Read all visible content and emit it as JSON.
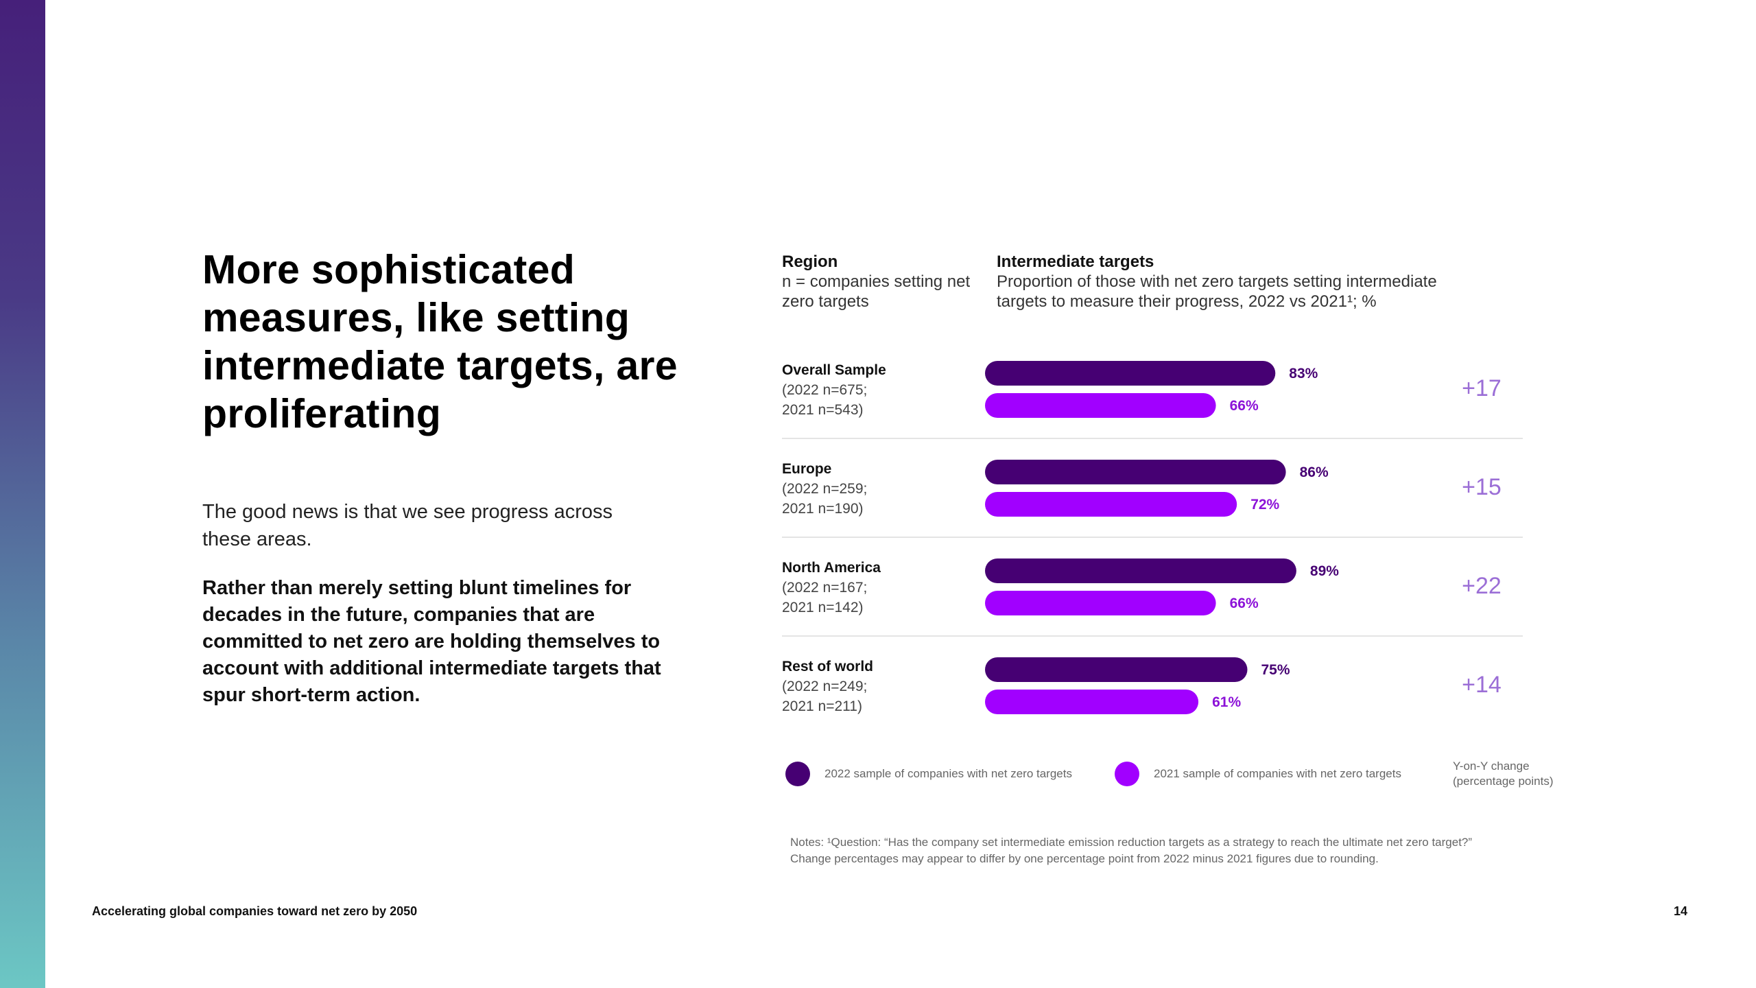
{
  "page": {
    "title": "More sophisticated measures, like setting intermediate targets, are proliferating",
    "intro": "The good news is that we see progress across these areas.",
    "body": "Rather than merely setting blunt timelines for decades in the future, companies that are committed to net zero are holding themselves to account with additional intermediate targets that spur short-term action.",
    "footer_title": "Accelerating global companies toward net zero by 2050",
    "page_number": "14"
  },
  "headers": {
    "region_title": "Region",
    "region_sub": "n = companies setting net zero targets",
    "targets_title": "Intermediate targets",
    "targets_sub": "Proportion of those with net zero targets setting intermediate targets to measure their progress, 2022 vs 2021¹; %"
  },
  "rows": [
    {
      "name": "Overall Sample",
      "n2022": "(2022 n=675;",
      "n2021": "2021 n=543)"
    },
    {
      "name": "Europe",
      "n2022": "(2022 n=259;",
      "n2021": "2021 n=190)"
    },
    {
      "name": "North America",
      "n2022": "(2022 n=167;",
      "n2021": "2021 n=142)"
    },
    {
      "name": "Rest of world",
      "n2022": "(2022 n=249;",
      "n2021": "2021 n=211)"
    }
  ],
  "legend": {
    "s2022": "2022 sample of companies with net zero targets",
    "s2021": "2021 sample of companies with net zero targets",
    "change": "Y-on-Y change (percentage points)"
  },
  "notes": {
    "line1": "Notes: ¹Question: “Has the company set intermediate emission reduction targets as a strategy to reach the ultimate net zero target?”",
    "line2": "Change percentages may appear to differ by one percentage point from 2022 minus 2021 figures due to rounding."
  },
  "colors": {
    "s2022": "#460073",
    "s2021": "#a100ff",
    "change": "#9b6ed6",
    "label2021": "#8c12d8"
  },
  "chart_data": {
    "type": "bar",
    "orientation": "horizontal",
    "categories": [
      "Overall Sample",
      "Europe",
      "North America",
      "Rest of world"
    ],
    "series": [
      {
        "name": "2022 sample of companies with net zero targets",
        "values": [
          83,
          86,
          89,
          75
        ],
        "labels": [
          "83%",
          "86%",
          "89%",
          "75%"
        ]
      },
      {
        "name": "2021 sample of companies with net zero targets",
        "values": [
          66,
          72,
          66,
          61
        ],
        "labels": [
          "66%",
          "72%",
          "66%",
          "61%"
        ]
      }
    ],
    "change": [
      17,
      15,
      22,
      14
    ],
    "change_labels": [
      "+17",
      "+15",
      "+22",
      "+14"
    ],
    "xlim": [
      0,
      100
    ],
    "title": "Intermediate targets"
  }
}
